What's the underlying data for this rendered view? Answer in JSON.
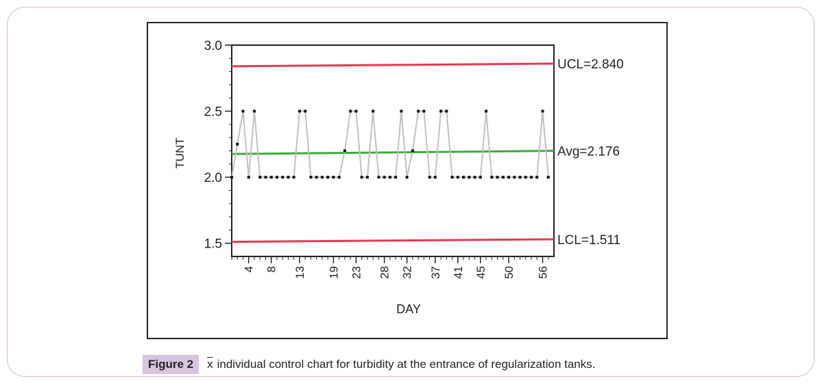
{
  "caption": {
    "label": "Figure 2",
    "symbol": "x",
    "text": "individual control chart for turbidity at the entrance of regularization tanks."
  },
  "chart_data": {
    "type": "line",
    "title": "",
    "xlabel": "DAY",
    "ylabel": "TUNT",
    "ylim": [
      1.4,
      3.0
    ],
    "xlim": [
      1,
      58
    ],
    "y_ticks": [
      "1.5",
      "2.0",
      "2.5",
      "3.0"
    ],
    "y_tick_values": [
      1.5,
      2.0,
      2.5,
      3.0
    ],
    "x_tick_labels": [
      "4",
      "8",
      "13",
      "19",
      "23",
      "28",
      "32",
      "37",
      "41",
      "45",
      "50",
      "56"
    ],
    "x_tick_values": [
      4,
      8,
      13,
      19,
      23,
      28,
      32,
      37,
      41,
      45,
      50,
      56
    ],
    "series": [
      {
        "name": "TUNT",
        "color": "#c0c0c0",
        "x": [
          1,
          2,
          3,
          4,
          5,
          6,
          7,
          8,
          9,
          10,
          11,
          12,
          13,
          14,
          15,
          16,
          17,
          18,
          19,
          20,
          21,
          22,
          23,
          24,
          25,
          26,
          27,
          28,
          29,
          30,
          31,
          32,
          33,
          34,
          35,
          36,
          37,
          38,
          39,
          40,
          41,
          42,
          43,
          44,
          45,
          46,
          47,
          48,
          49,
          50,
          51,
          52,
          53,
          54,
          55,
          56,
          57
        ],
        "values": [
          2.0,
          2.25,
          2.5,
          2.0,
          2.5,
          2.0,
          2.0,
          2.0,
          2.0,
          2.0,
          2.0,
          2.0,
          2.5,
          2.5,
          2.0,
          2.0,
          2.0,
          2.0,
          2.0,
          2.0,
          2.2,
          2.5,
          2.5,
          2.0,
          2.0,
          2.5,
          2.0,
          2.0,
          2.0,
          2.0,
          2.5,
          2.0,
          2.2,
          2.5,
          2.5,
          2.0,
          2.0,
          2.5,
          2.5,
          2.0,
          2.0,
          2.0,
          2.0,
          2.0,
          2.0,
          2.5,
          2.0,
          2.0,
          2.0,
          2.0,
          2.0,
          2.0,
          2.0,
          2.0,
          2.0,
          2.5,
          2.0
        ]
      }
    ],
    "control_lines": [
      {
        "name": "UCL",
        "label": "UCL=2.840",
        "value": 2.84,
        "value_end": 2.86,
        "color": "#e03a4e"
      },
      {
        "name": "Avg",
        "label": "Avg=2.176",
        "value": 2.176,
        "value_end": 2.2,
        "color": "#3aac3a"
      },
      {
        "name": "LCL",
        "label": "LCL=1.511",
        "value": 1.511,
        "value_end": 1.53,
        "color": "#e03a4e"
      }
    ]
  }
}
